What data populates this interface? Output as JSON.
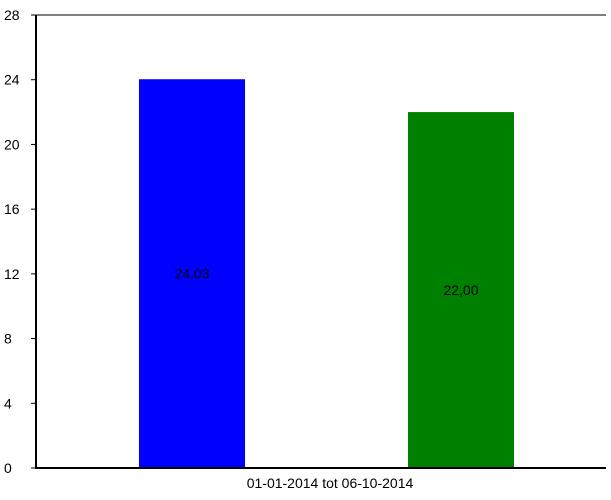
{
  "chart_data": {
    "type": "bar",
    "title": "",
    "xlabel": "",
    "ylabel": "",
    "categories": [
      "01-01-2014 tot 06-10-2014"
    ],
    "series": [
      {
        "color": "#0000ff",
        "values": [
          24.03
        ],
        "value_label": "24,03"
      },
      {
        "color": "#008000",
        "values": [
          22.0
        ],
        "value_label": "22,00"
      }
    ],
    "ylim": [
      0,
      28
    ],
    "yticks": [
      0,
      4,
      8,
      12,
      16,
      20,
      24,
      28
    ],
    "ytick_labels": [
      "0",
      "4",
      "8",
      "12",
      "16",
      "20",
      "24",
      "28"
    ],
    "grid": false,
    "legend": "none"
  }
}
